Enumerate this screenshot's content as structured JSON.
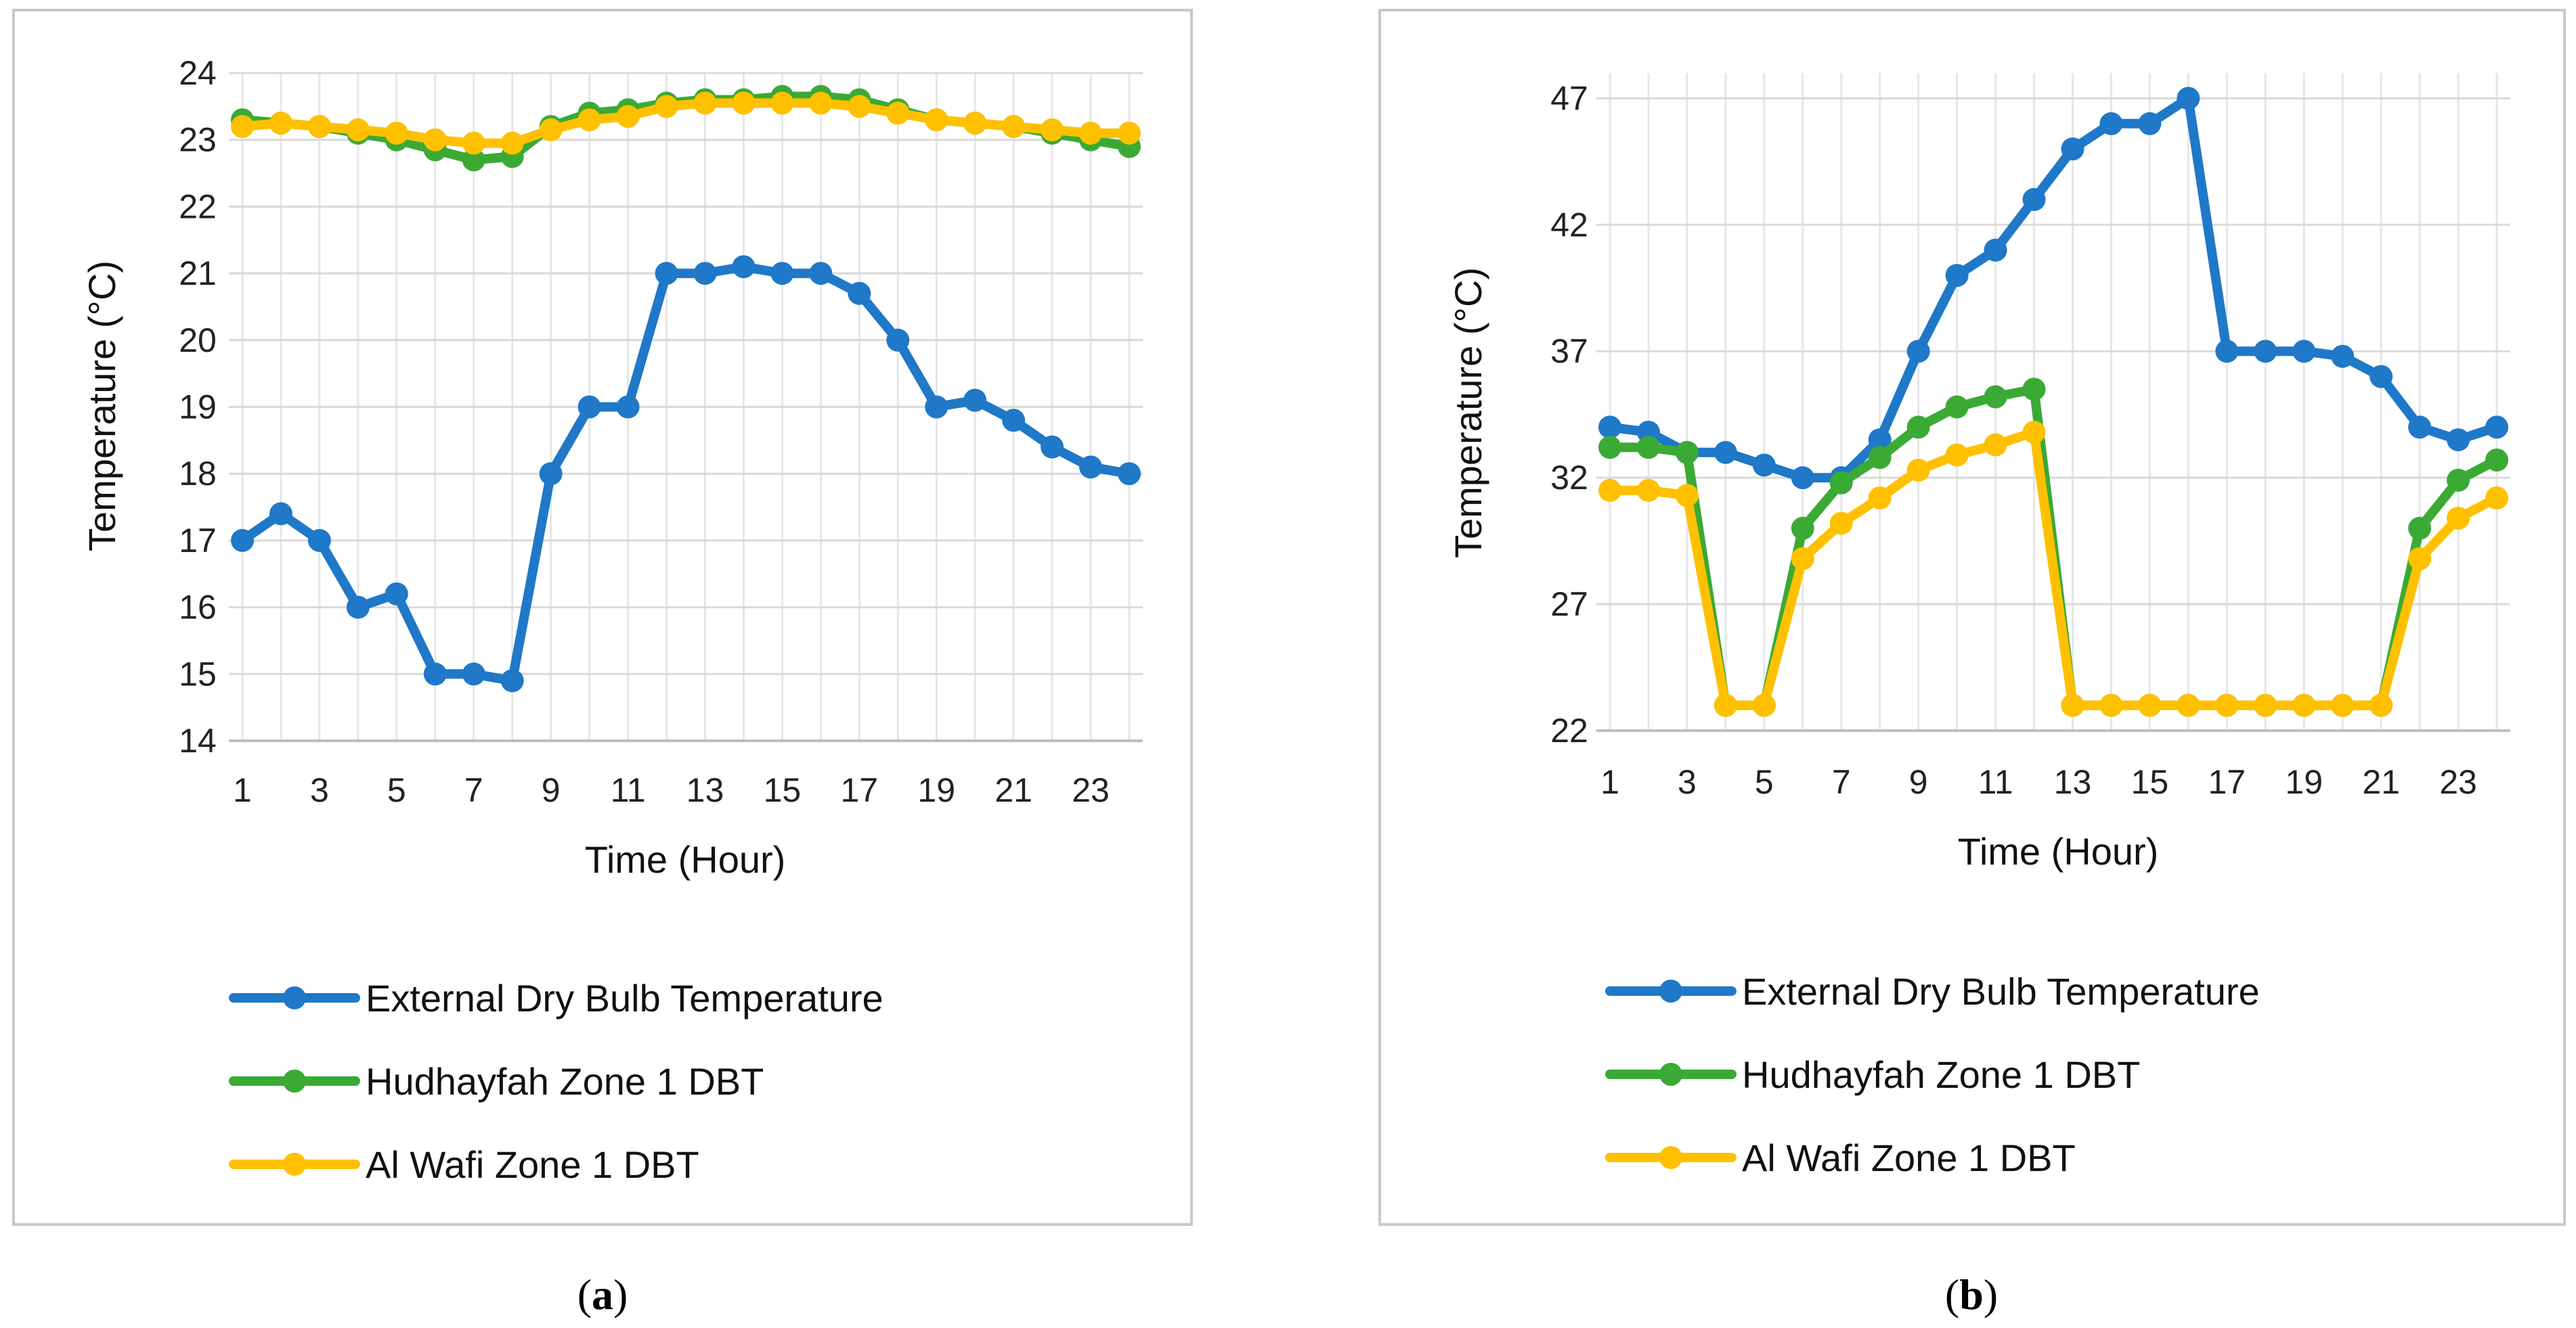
{
  "figure": {
    "panels": [
      {
        "caption_letter": "a"
      },
      {
        "caption_letter": "b"
      }
    ],
    "colors": {
      "External Dry Bulb Temperature": "#1f78c8",
      "Hudhayfah Zone 1 DBT": "#3aaa35",
      "Al Wafi Zone 1 DBT": "#ffc000"
    }
  },
  "chart_data": [
    {
      "type": "line",
      "xlabel": "Time (Hour)",
      "ylabel": "Temperature (°C)",
      "ylim": [
        14,
        24
      ],
      "yticks": [
        14,
        15,
        16,
        17,
        18,
        19,
        20,
        21,
        22,
        23,
        24
      ],
      "x": [
        1,
        2,
        3,
        4,
        5,
        6,
        7,
        8,
        9,
        10,
        11,
        12,
        13,
        14,
        15,
        16,
        17,
        18,
        19,
        20,
        21,
        22,
        23,
        24
      ],
      "xtick_labels": [
        "1",
        "3",
        "5",
        "7",
        "9",
        "11",
        "13",
        "15",
        "17",
        "19",
        "21",
        "23"
      ],
      "grid": true,
      "legend": "bottom",
      "series": [
        {
          "name": "External Dry Bulb Temperature",
          "values": [
            17.0,
            17.4,
            17.0,
            16.0,
            16.2,
            15.0,
            15.0,
            14.9,
            18.0,
            19.0,
            19.0,
            21.0,
            21.0,
            21.1,
            21.0,
            21.0,
            20.7,
            20.0,
            19.0,
            19.1,
            18.8,
            18.4,
            18.1,
            18.0
          ]
        },
        {
          "name": "Hudhayfah Zone 1 DBT",
          "values": [
            23.3,
            23.25,
            23.2,
            23.1,
            23.0,
            22.85,
            22.7,
            22.75,
            23.2,
            23.4,
            23.45,
            23.55,
            23.6,
            23.6,
            23.65,
            23.65,
            23.6,
            23.45,
            23.3,
            23.25,
            23.2,
            23.1,
            23.0,
            22.9
          ]
        },
        {
          "name": "Al Wafi Zone 1 DBT",
          "values": [
            23.2,
            23.25,
            23.2,
            23.15,
            23.1,
            23.0,
            22.95,
            22.95,
            23.15,
            23.3,
            23.35,
            23.5,
            23.55,
            23.55,
            23.55,
            23.55,
            23.5,
            23.4,
            23.3,
            23.25,
            23.2,
            23.15,
            23.1,
            23.1
          ]
        }
      ]
    },
    {
      "type": "line",
      "xlabel": "Time (Hour)",
      "ylabel": "Temperature (°C)",
      "ylim": [
        22,
        48
      ],
      "yticks": [
        22,
        27,
        32,
        37,
        42,
        47
      ],
      "x": [
        1,
        2,
        3,
        4,
        5,
        6,
        7,
        8,
        9,
        10,
        11,
        12,
        13,
        14,
        15,
        16,
        17,
        18,
        19,
        20,
        21,
        22,
        23,
        24
      ],
      "xtick_labels": [
        "1",
        "3",
        "5",
        "7",
        "9",
        "11",
        "13",
        "15",
        "17",
        "19",
        "21",
        "23"
      ],
      "grid": true,
      "legend": "bottom",
      "series": [
        {
          "name": "External Dry Bulb Temperature",
          "values": [
            34.0,
            33.8,
            33.0,
            33.0,
            32.5,
            32.0,
            32.0,
            33.5,
            37.0,
            40.0,
            41.0,
            43.0,
            45.0,
            46.0,
            46.0,
            47.0,
            37.0,
            37.0,
            37.0,
            36.8,
            36.0,
            34.0,
            33.5,
            34.0
          ]
        },
        {
          "name": "Hudhayfah Zone 1 DBT",
          "values": [
            33.2,
            33.2,
            33.0,
            23.0,
            23.0,
            30.0,
            31.8,
            32.8,
            34.0,
            34.8,
            35.2,
            35.5,
            23.0,
            23.0,
            23.0,
            23.0,
            23.0,
            23.0,
            23.0,
            23.0,
            23.0,
            30.0,
            31.9,
            32.7
          ]
        },
        {
          "name": "Al Wafi Zone 1 DBT",
          "values": [
            31.5,
            31.5,
            31.3,
            23.0,
            23.0,
            28.8,
            30.2,
            31.2,
            32.3,
            32.9,
            33.3,
            33.8,
            23.0,
            23.0,
            23.0,
            23.0,
            23.0,
            23.0,
            23.0,
            23.0,
            23.0,
            28.8,
            30.4,
            31.2
          ]
        }
      ]
    }
  ]
}
